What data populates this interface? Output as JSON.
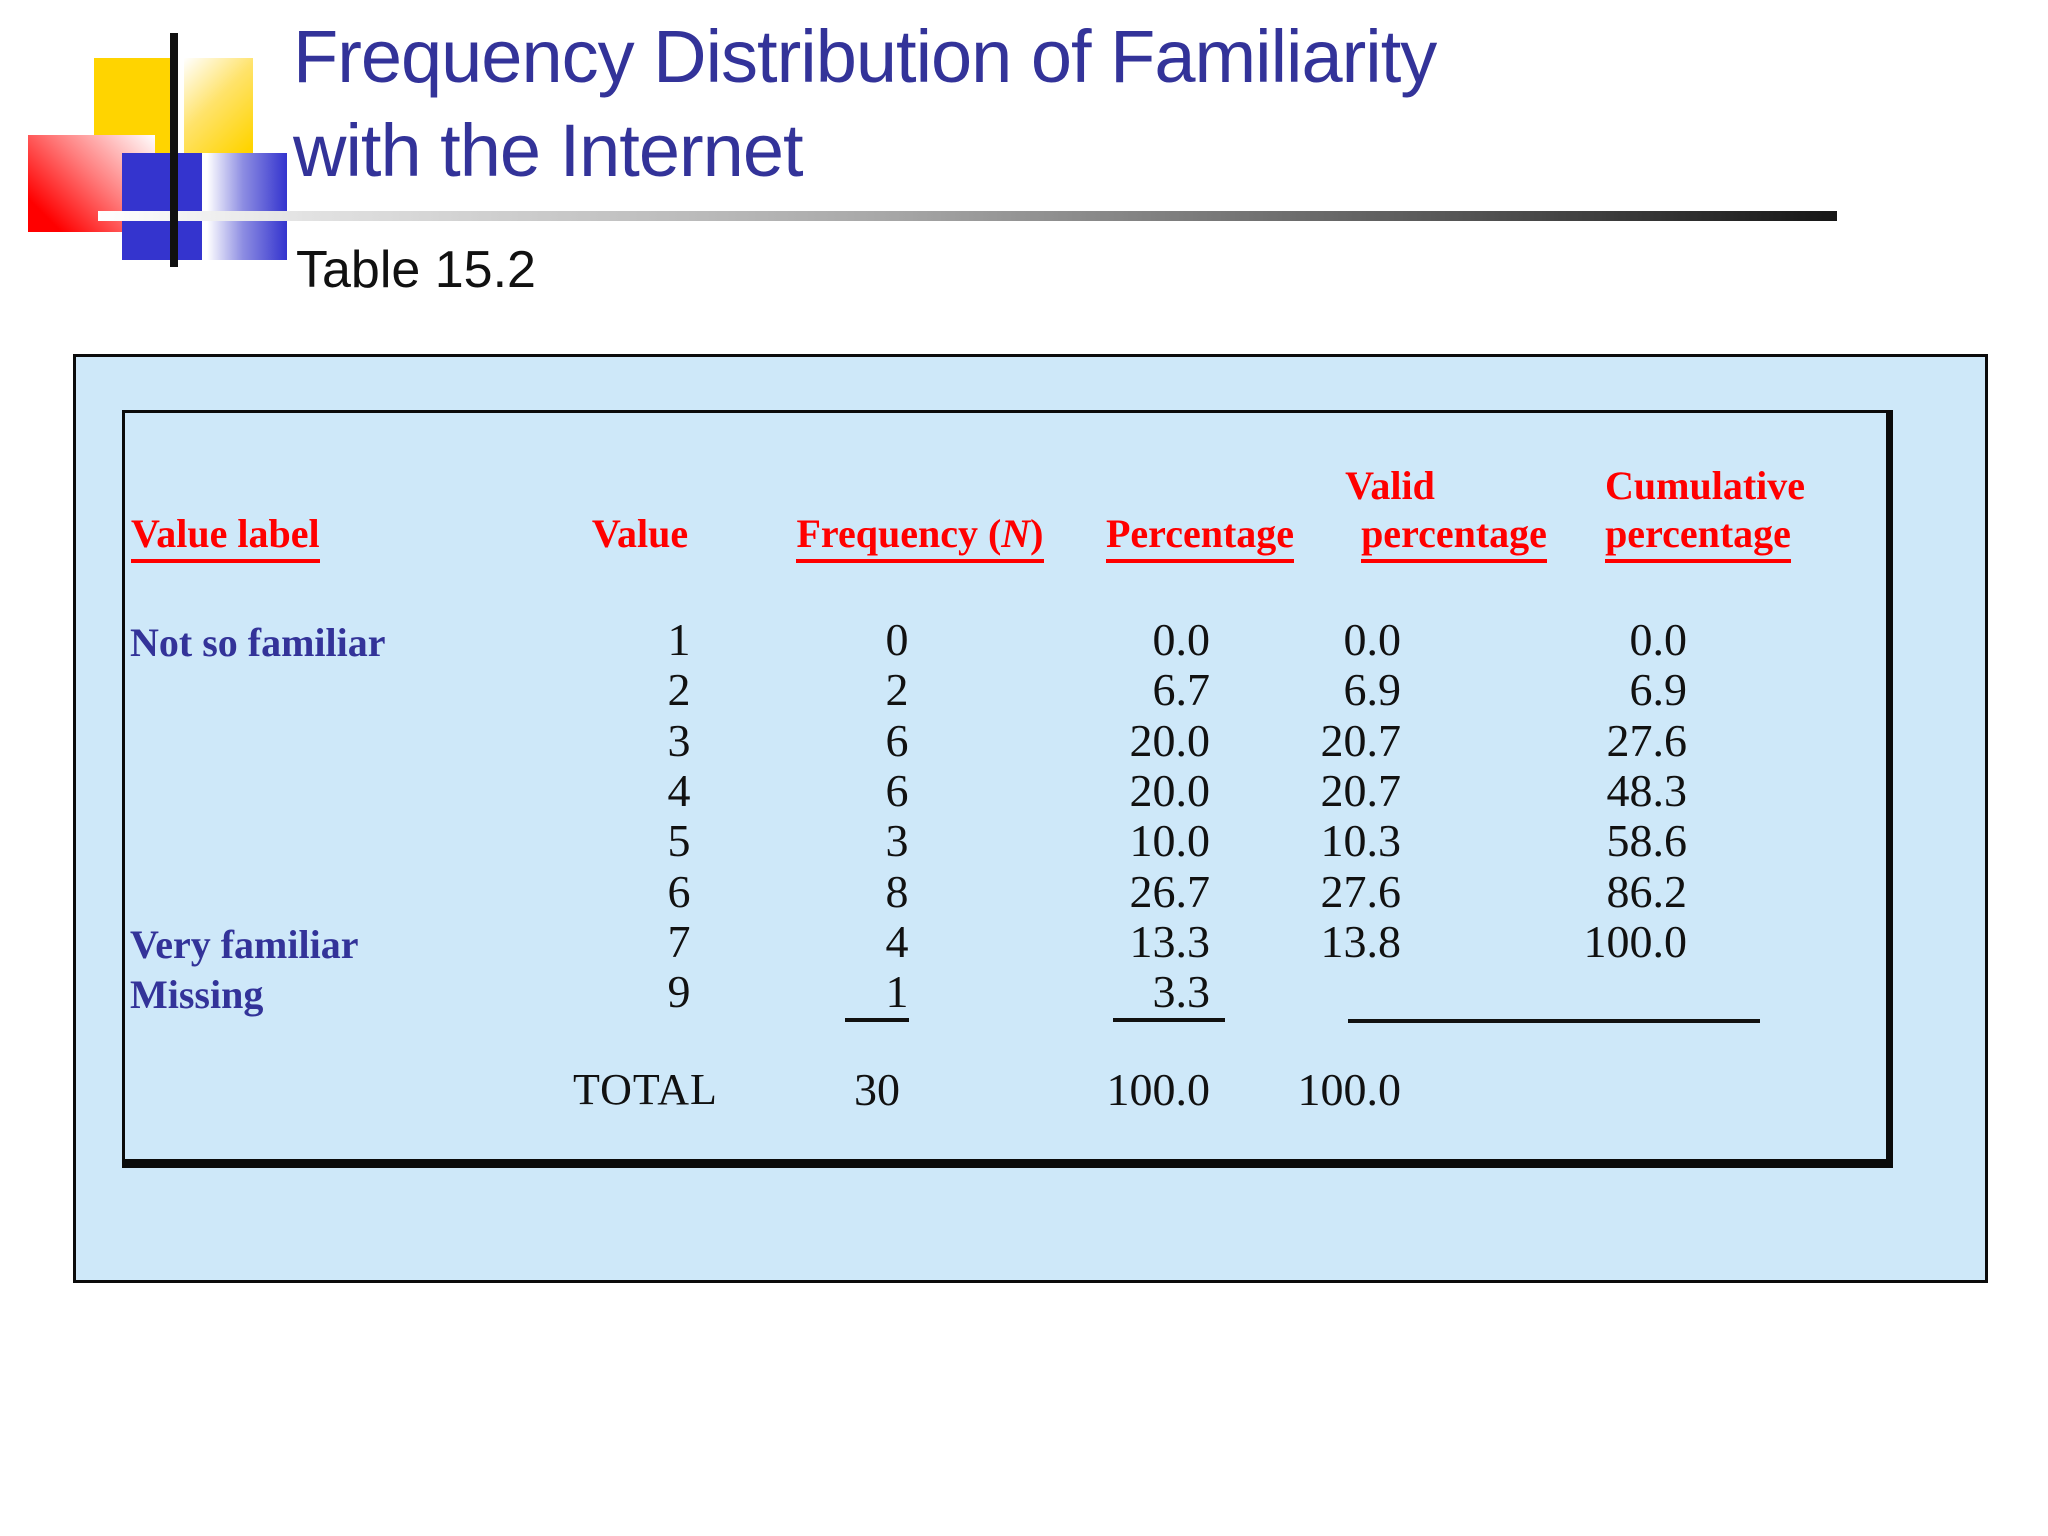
{
  "slide": {
    "title_line1": "Frequency Distribution of Familiarity",
    "title_line2": "with the Internet",
    "subtitle": "Table 15.2"
  },
  "table": {
    "headers": {
      "value_label": "Value label",
      "value": "Value",
      "frequency_pre": "Frequency (",
      "frequency_n": "N",
      "frequency_post": ")",
      "percentage": "Percentage",
      "valid_top": "Valid",
      "valid_bottom": "percentage",
      "cumulative_top": "Cumulative",
      "cumulative_bottom": "percentage"
    },
    "rows": [
      {
        "label": "Not so familiar",
        "value": "1",
        "frequency": "0",
        "percentage": "0.0",
        "valid_percentage": "0.0",
        "cumulative_percentage": "0.0"
      },
      {
        "label": "",
        "value": "2",
        "frequency": "2",
        "percentage": "6.7",
        "valid_percentage": "6.9",
        "cumulative_percentage": "6.9"
      },
      {
        "label": "",
        "value": "3",
        "frequency": "6",
        "percentage": "20.0",
        "valid_percentage": "20.7",
        "cumulative_percentage": "27.6"
      },
      {
        "label": "",
        "value": "4",
        "frequency": "6",
        "percentage": "20.0",
        "valid_percentage": "20.7",
        "cumulative_percentage": "48.3"
      },
      {
        "label": "",
        "value": "5",
        "frequency": "3",
        "percentage": "10.0",
        "valid_percentage": "10.3",
        "cumulative_percentage": "58.6"
      },
      {
        "label": "",
        "value": "6",
        "frequency": "8",
        "percentage": "26.7",
        "valid_percentage": "27.6",
        "cumulative_percentage": "86.2"
      },
      {
        "label": "Very familiar",
        "value": "7",
        "frequency": "4",
        "percentage": "13.3",
        "valid_percentage": "13.8",
        "cumulative_percentage": "100.0"
      },
      {
        "label": "Missing",
        "value": "9",
        "frequency": "1",
        "percentage": "3.3",
        "valid_percentage": "",
        "cumulative_percentage": ""
      }
    ],
    "total": {
      "label": "TOTAL",
      "frequency": "30",
      "percentage": "100.0",
      "valid_percentage": "100.0"
    }
  },
  "colors": {
    "header_red": "#ff0000",
    "label_blue": "#333399",
    "title_blue": "#333399",
    "table_bg": "#cee8f9"
  }
}
